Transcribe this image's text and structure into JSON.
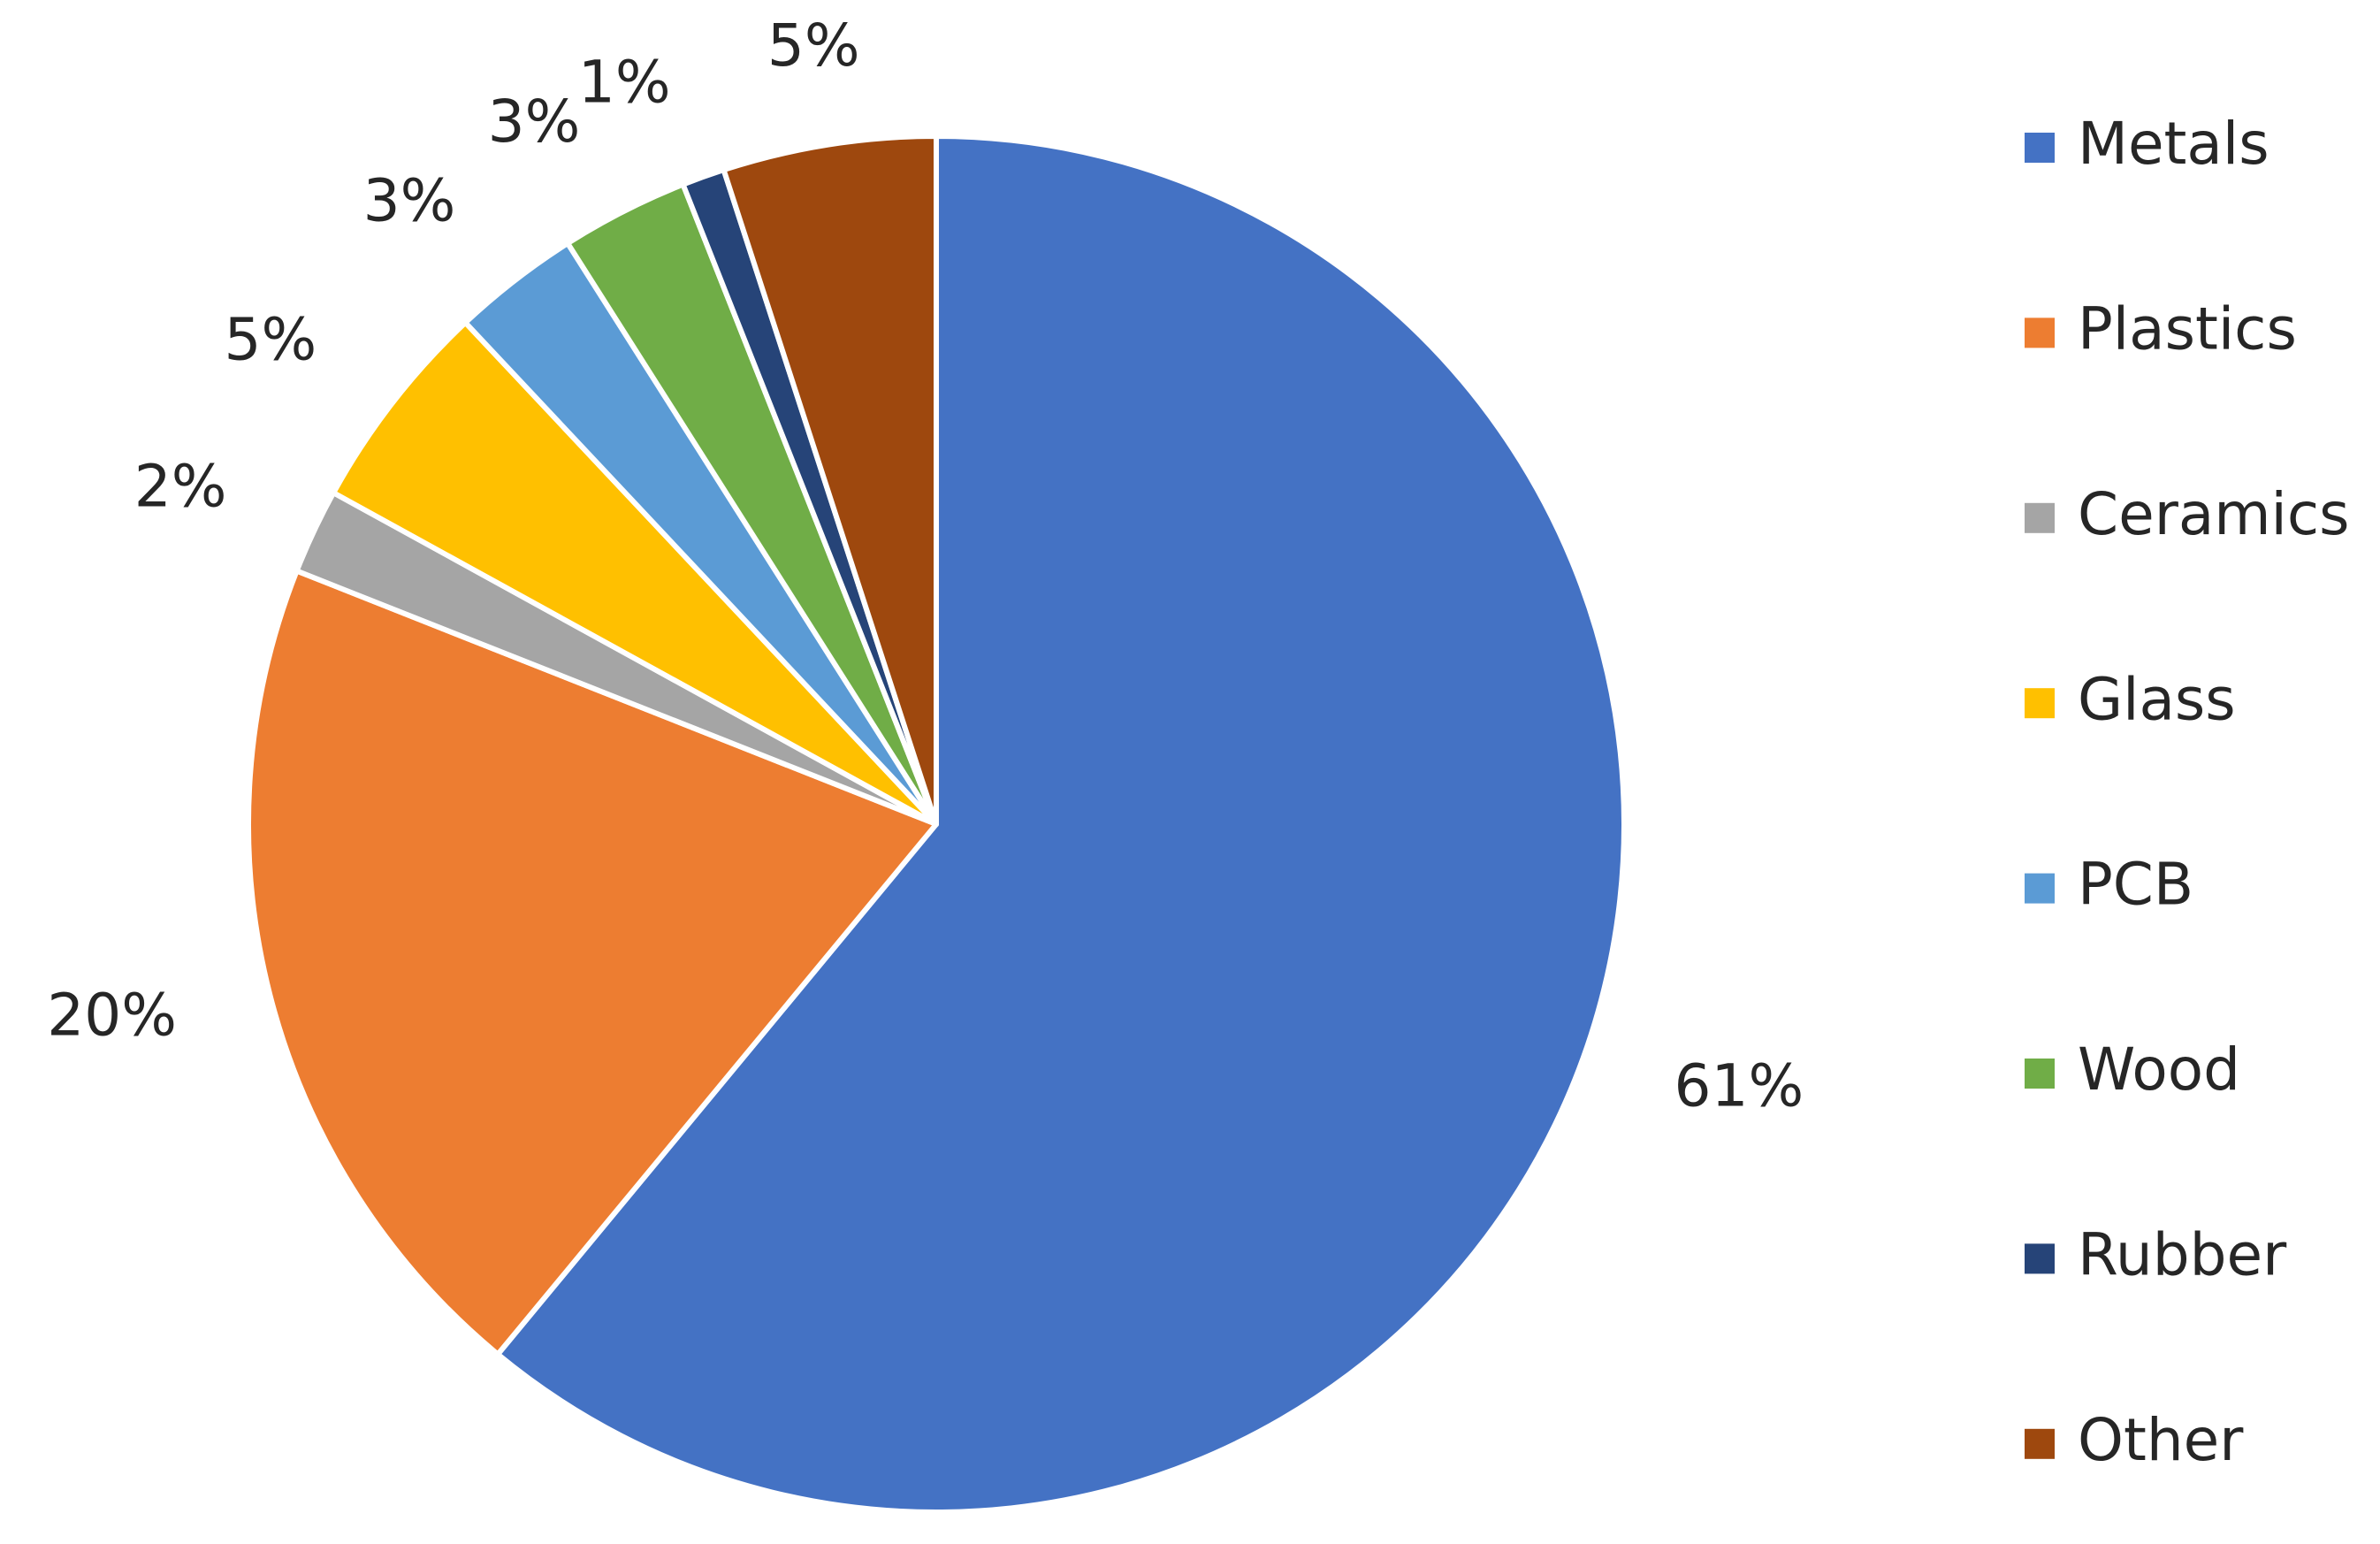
{
  "chart_data": {
    "type": "pie",
    "categories": [
      "Metals",
      "Plastics",
      "Ceramics",
      "Glass",
      "PCB",
      "Wood",
      "Rubber",
      "Other"
    ],
    "values": [
      61,
      20,
      2,
      5,
      3,
      3,
      1,
      5
    ],
    "value_labels": [
      "61%",
      "20%",
      "2%",
      "5%",
      "3%",
      "3%",
      "1%",
      "5%"
    ],
    "colors": [
      "#4472c4",
      "#ed7d31",
      "#a5a5a5",
      "#ffc000",
      "#5b9bd5",
      "#70ad47",
      "#264478",
      "#9e480e"
    ],
    "legend": "right"
  }
}
